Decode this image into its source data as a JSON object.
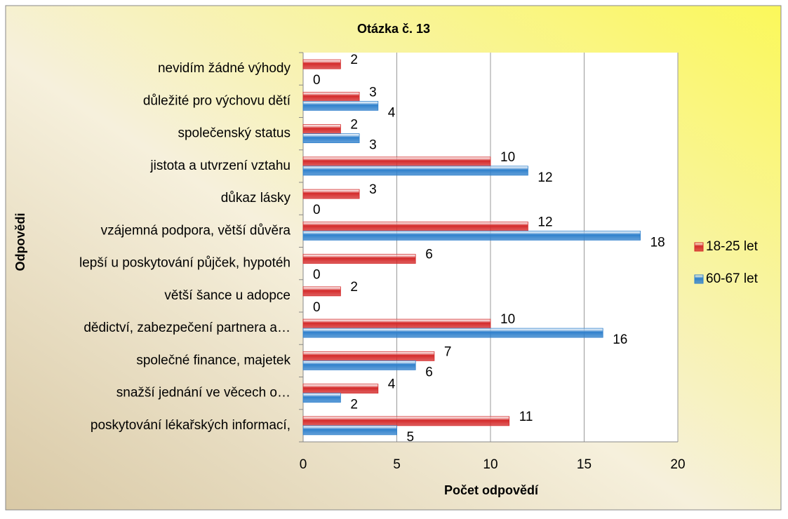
{
  "chart_data": {
    "type": "bar",
    "orientation": "horizontal",
    "title": "Otázka č. 13",
    "x_label": "Počet odpovědí",
    "y_label": "Odpovědi",
    "categories": [
      "nevidím žádné výhody ",
      "důležité pro výchovu dětí ",
      "společenský status ",
      "jistota a utvrzení vztahu ",
      "důkaz lásky ",
      "vzájemná podpora, větší důvěra ",
      "lepší u poskytování půjček, hypotéh ",
      "větší šance u adopce ",
      "dědictví, zabezpečení partnera a…",
      "společné finance, majetek ",
      "snažší jednání ve věcech o…",
      "poskytování lékařských informací, "
    ],
    "series": [
      {
        "name": "18-25 let",
        "color": "#d42a2a",
        "values": [
          2,
          3,
          2,
          10,
          3,
          12,
          6,
          2,
          10,
          7,
          4,
          11
        ]
      },
      {
        "name": "60-67 let",
        "color": "#2f80cc",
        "values": [
          0,
          4,
          3,
          12,
          0,
          18,
          0,
          0,
          16,
          6,
          2,
          5
        ]
      }
    ],
    "xlim": [
      0,
      20
    ],
    "xticks": [
      0,
      5,
      10,
      15,
      20
    ],
    "grid": true,
    "legend": "right"
  }
}
